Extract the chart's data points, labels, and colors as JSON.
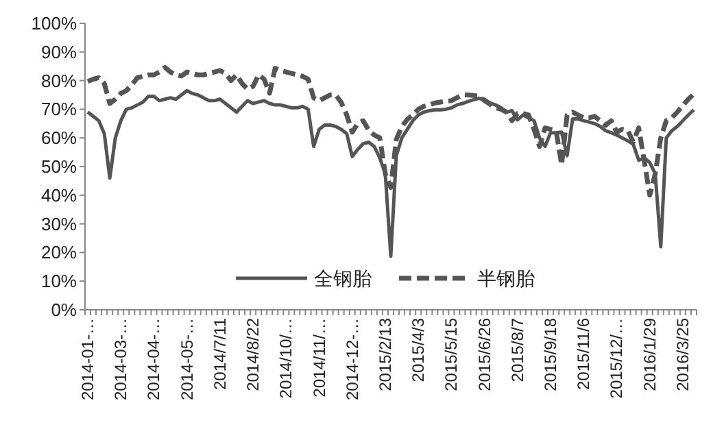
{
  "chart_data": {
    "type": "line",
    "categories": [
      "2014-01-…",
      null,
      null,
      null,
      null,
      null,
      "2014-03-…",
      null,
      null,
      null,
      null,
      null,
      "2014-04-…",
      null,
      null,
      null,
      null,
      null,
      "2014-05-…",
      null,
      null,
      null,
      null,
      null,
      "2014/7/11",
      null,
      null,
      null,
      null,
      null,
      "2014/8/22",
      null,
      null,
      null,
      null,
      null,
      "2014/10/…",
      null,
      null,
      null,
      null,
      null,
      "2014/11/…",
      null,
      null,
      null,
      null,
      null,
      "2014-12-…",
      null,
      null,
      null,
      null,
      null,
      "2015/2/13",
      null,
      null,
      null,
      null,
      null,
      "2015/4/3",
      null,
      null,
      null,
      null,
      null,
      "2015/5/15",
      null,
      null,
      null,
      null,
      null,
      "2015/6/26",
      null,
      null,
      null,
      null,
      null,
      "2015/8/7",
      null,
      null,
      null,
      null,
      null,
      "2015/9/18",
      null,
      null,
      null,
      null,
      null,
      "2015/11/6",
      null,
      null,
      null,
      null,
      null,
      "2015/12/…",
      null,
      null,
      null,
      null,
      null,
      "2016/1/29",
      null,
      null,
      null,
      null,
      null,
      "2016/3/25",
      null,
      null
    ],
    "series": [
      {
        "name": "全钢胎",
        "color": "#555555",
        "line_style": "solid",
        "values": [
          69,
          67.5,
          66,
          61.5,
          46,
          60,
          66,
          70,
          70.5,
          71.5,
          72.5,
          74.5,
          74.5,
          73,
          73.5,
          74,
          73.5,
          75,
          76.5,
          75.5,
          75,
          74,
          73,
          73,
          73.5,
          72,
          70.5,
          69,
          71,
          73,
          72,
          72.5,
          73,
          72,
          71.5,
          71.5,
          71,
          70.5,
          70.5,
          71,
          70,
          57,
          63,
          64.5,
          64.5,
          64,
          63,
          61.5,
          53.5,
          56,
          58,
          58.5,
          57,
          53,
          47.5,
          18.7,
          53.8,
          60,
          63,
          66,
          68,
          69,
          69.5,
          69.8,
          69.8,
          70,
          70.5,
          71.5,
          72,
          72.7,
          73.3,
          73.8,
          73.5,
          72.2,
          71.5,
          70.6,
          69,
          69.5,
          66.3,
          68,
          67,
          66,
          60,
          57,
          61.8,
          61.8,
          62,
          53.8,
          66.6,
          66.6,
          66,
          65.5,
          65,
          64,
          62.5,
          61.8,
          61,
          60,
          59,
          57.8,
          52.2,
          53,
          51.4,
          47.5,
          22,
          60,
          62.5,
          64,
          66,
          68,
          69.8
        ]
      },
      {
        "name": "半钢胎",
        "color": "#555555",
        "line_style": "dashed",
        "values": [
          79.7,
          80.5,
          81,
          79,
          72,
          73.5,
          75.5,
          76.5,
          78.5,
          81,
          81.5,
          82,
          82,
          83,
          84.6,
          83,
          82,
          81.6,
          83,
          82.5,
          82,
          82,
          82.5,
          83,
          83.5,
          82.5,
          80,
          82,
          79,
          77,
          78,
          82,
          80.5,
          75.6,
          84.3,
          83.5,
          83,
          82.5,
          82,
          81.5,
          80.5,
          74,
          73,
          74,
          75,
          75,
          72.4,
          68,
          62,
          65,
          66,
          62.6,
          61,
          60,
          47.5,
          42.7,
          59.5,
          64,
          66.5,
          68,
          70,
          71,
          71.5,
          72.2,
          72.5,
          72.8,
          73,
          74,
          75,
          75,
          74.8,
          74.6,
          73,
          71.8,
          70.5,
          70,
          69,
          66,
          68.5,
          68.5,
          68,
          63,
          57,
          63.5,
          63,
          62.6,
          50.6,
          68,
          69,
          68,
          67,
          67,
          67.5,
          66,
          64.4,
          66,
          62,
          63,
          62.6,
          58.6,
          63.5,
          52,
          40,
          47.5,
          60,
          66,
          67,
          69,
          71.3,
          73.5,
          75.3
        ]
      }
    ],
    "ylim": [
      0,
      100
    ],
    "yticks": [
      {
        "value": 0,
        "label": "0%"
      },
      {
        "value": 10,
        "label": "10%"
      },
      {
        "value": 20,
        "label": "20%"
      },
      {
        "value": 30,
        "label": "30%"
      },
      {
        "value": 40,
        "label": "40%"
      },
      {
        "value": 50,
        "label": "50%"
      },
      {
        "value": 60,
        "label": "60%"
      },
      {
        "value": 70,
        "label": "70%"
      },
      {
        "value": 80,
        "label": "80%"
      },
      {
        "value": 90,
        "label": "90%"
      },
      {
        "value": 100,
        "label": "100%"
      }
    ],
    "legend": "bottom",
    "grid": false
  }
}
